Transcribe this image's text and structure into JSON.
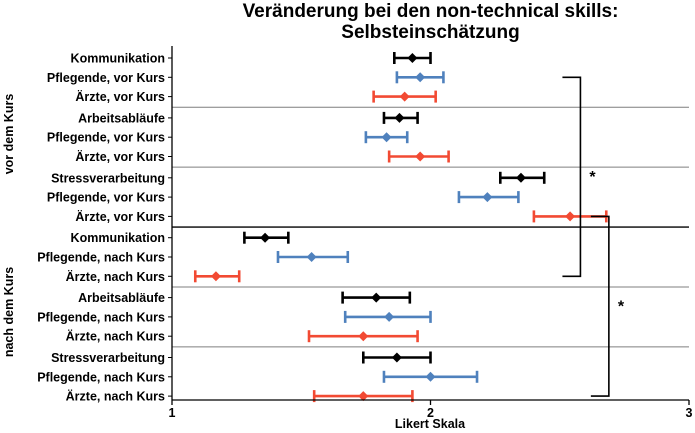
{
  "chart_data": {
    "type": "errorbar-dot",
    "title_lines": [
      "Veränderung bei den non-technical skills:",
      "Selbsteinschätzung"
    ],
    "xlabel": "Likert Skala",
    "xlim": [
      1,
      3
    ],
    "xticks": [
      1,
      2,
      3
    ],
    "tick_labels": [
      "1",
      "2",
      "3"
    ],
    "colors": {
      "Gesamt": "#000000",
      "Pflegende": "#4f81bd",
      "Ärzte": "#f24a33"
    },
    "group_labels": [
      "vor dem Kurs",
      "nach dem Kurs"
    ],
    "rows": [
      {
        "label": "Kommunikation",
        "series": "Gesamt",
        "mean": 1.93,
        "lo": 1.86,
        "hi": 2.0
      },
      {
        "label": "Pflegende, vor Kurs",
        "series": "Pflegende",
        "mean": 1.96,
        "lo": 1.87,
        "hi": 2.05
      },
      {
        "label": "Ärzte, vor Kurs",
        "series": "Ärzte",
        "mean": 1.9,
        "lo": 1.78,
        "hi": 2.02
      },
      {
        "label": "Arbeitsabläufe",
        "series": "Gesamt",
        "mean": 1.88,
        "lo": 1.82,
        "hi": 1.95
      },
      {
        "label": "Pflegende, vor Kurs",
        "series": "Pflegende",
        "mean": 1.83,
        "lo": 1.75,
        "hi": 1.91
      },
      {
        "label": "Ärzte, vor Kurs",
        "series": "Ärzte",
        "mean": 1.96,
        "lo": 1.84,
        "hi": 2.07
      },
      {
        "label": "Stressverarbeitung",
        "series": "Gesamt",
        "mean": 2.35,
        "lo": 2.27,
        "hi": 2.44
      },
      {
        "label": "Pflegende, vor Kurs",
        "series": "Pflegende",
        "mean": 2.22,
        "lo": 2.11,
        "hi": 2.34
      },
      {
        "label": "Ärzte, vor Kurs",
        "series": "Ärzte",
        "mean": 2.54,
        "lo": 2.4,
        "hi": 2.68
      },
      {
        "label": "Kommunikation",
        "series": "Gesamt",
        "mean": 1.36,
        "lo": 1.28,
        "hi": 1.45
      },
      {
        "label": "Pflegende, nach Kurs",
        "series": "Pflegende",
        "mean": 1.54,
        "lo": 1.41,
        "hi": 1.68
      },
      {
        "label": "Ärzte, nach Kurs",
        "series": "Ärzte",
        "mean": 1.17,
        "lo": 1.09,
        "hi": 1.26
      },
      {
        "label": "Arbeitsabläufe",
        "series": "Gesamt",
        "mean": 1.79,
        "lo": 1.66,
        "hi": 1.92
      },
      {
        "label": "Pflegende, nach Kurs",
        "series": "Pflegende",
        "mean": 1.84,
        "lo": 1.67,
        "hi": 2.0
      },
      {
        "label": "Ärzte, nach Kurs",
        "series": "Ärzte",
        "mean": 1.74,
        "lo": 1.53,
        "hi": 1.95
      },
      {
        "label": "Stressverarbeitung",
        "series": "Gesamt",
        "mean": 1.87,
        "lo": 1.74,
        "hi": 2.0
      },
      {
        "label": "Pflegende, nach Kurs",
        "series": "Pflegende",
        "mean": 2.0,
        "lo": 1.82,
        "hi": 2.18
      },
      {
        "label": "Ärzte, nach Kurs",
        "series": "Ärzte",
        "mean": 1.74,
        "lo": 1.55,
        "hi": 1.93
      }
    ],
    "significance": [
      {
        "label": "*",
        "from_row": 1,
        "to_row": 11,
        "x": 2.58
      },
      {
        "label": "*",
        "from_row": 8,
        "to_row": 17,
        "x": 2.69
      }
    ],
    "grid": false
  }
}
